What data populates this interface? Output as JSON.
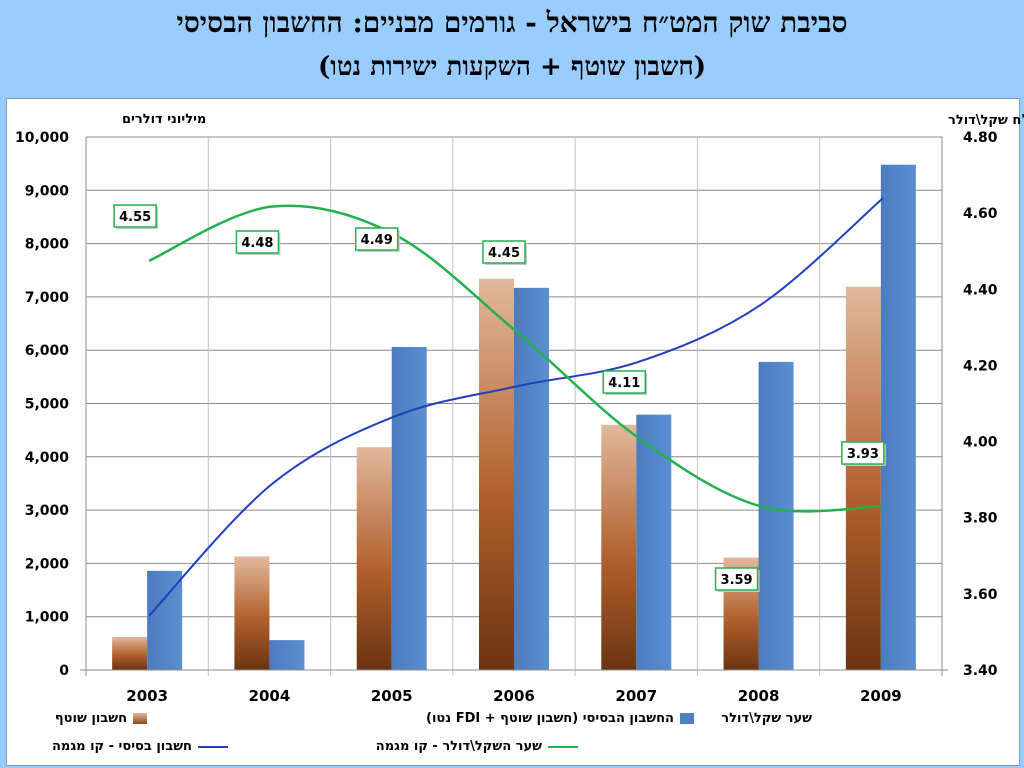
{
  "title": {
    "line1": "סביבת שוק המט״ח בישראל - גורמים מבניים: החשבון הבסיסי",
    "line2": "(חשבון שוטף + השקעות ישירות נטו)"
  },
  "chart_data": {
    "type": "bar",
    "categories": [
      "2003",
      "2004",
      "2005",
      "2006",
      "2007",
      "2008",
      "2009"
    ],
    "series": [
      {
        "name": "חשבון שוטף",
        "kind": "bar",
        "axis": "left",
        "color": "#b36b3c",
        "values": [
          620,
          2130,
          4180,
          7340,
          4600,
          2110,
          7190
        ]
      },
      {
        "name": "החשבון הבסיסי (חשבון שוטף + FDI נטו)",
        "kind": "bar",
        "axis": "left",
        "color": "#4f81bd",
        "values": [
          1860,
          560,
          6060,
          7170,
          4790,
          5780,
          9480
        ]
      },
      {
        "name": "שער שקל\\דולר",
        "kind": "labels",
        "axis": "right",
        "values": [
          4.55,
          4.48,
          4.49,
          4.45,
          4.11,
          3.59,
          3.93
        ]
      },
      {
        "name": "חשבון בסיסי - קו מגמה",
        "kind": "trendline",
        "axis": "left",
        "color": "#1f3fbf",
        "values": [
          1020,
          3480,
          4750,
          5320,
          5780,
          6850,
          8850
        ]
      },
      {
        "name": "שער השקל\\דולר - קו מגמה",
        "kind": "trendline",
        "axis": "right",
        "color": "#22b14c",
        "values": [
          4.475,
          4.617,
          4.545,
          4.29,
          4.01,
          3.83,
          3.83
        ]
      }
    ],
    "left_axis": {
      "title": "מיליוני דולרים",
      "min": 0,
      "max": 10000,
      "step": 1000,
      "ticks": [
        "0",
        "1,000",
        "2,000",
        "3,000",
        "4,000",
        "5,000",
        "6,000",
        "7,000",
        "8,000",
        "9,000",
        "10,000"
      ]
    },
    "right_axis": {
      "title": "שע\"ח שקל\\דולר",
      "min": 3.4,
      "max": 4.8,
      "step": 0.2,
      "ticks": [
        "3.40",
        "3.60",
        "3.80",
        "4.00",
        "4.20",
        "4.40",
        "4.60",
        "4.80"
      ]
    },
    "rate_labels": [
      "4.55",
      "4.48",
      "4.49",
      "4.45",
      "4.11",
      "3.59",
      "3.93"
    ],
    "grid": true,
    "legend_position": "bottom"
  },
  "legend": {
    "current_account": "חשבון שוטף",
    "basic_account": "החשבון הבסיסי (חשבון שוטף + FDI נטו)",
    "rate": "שער שקל\\דולר",
    "basic_trend": "חשבון בסיסי - קו מגמה",
    "rate_trend": "שער השקל\\דולר - קו מגמה"
  }
}
